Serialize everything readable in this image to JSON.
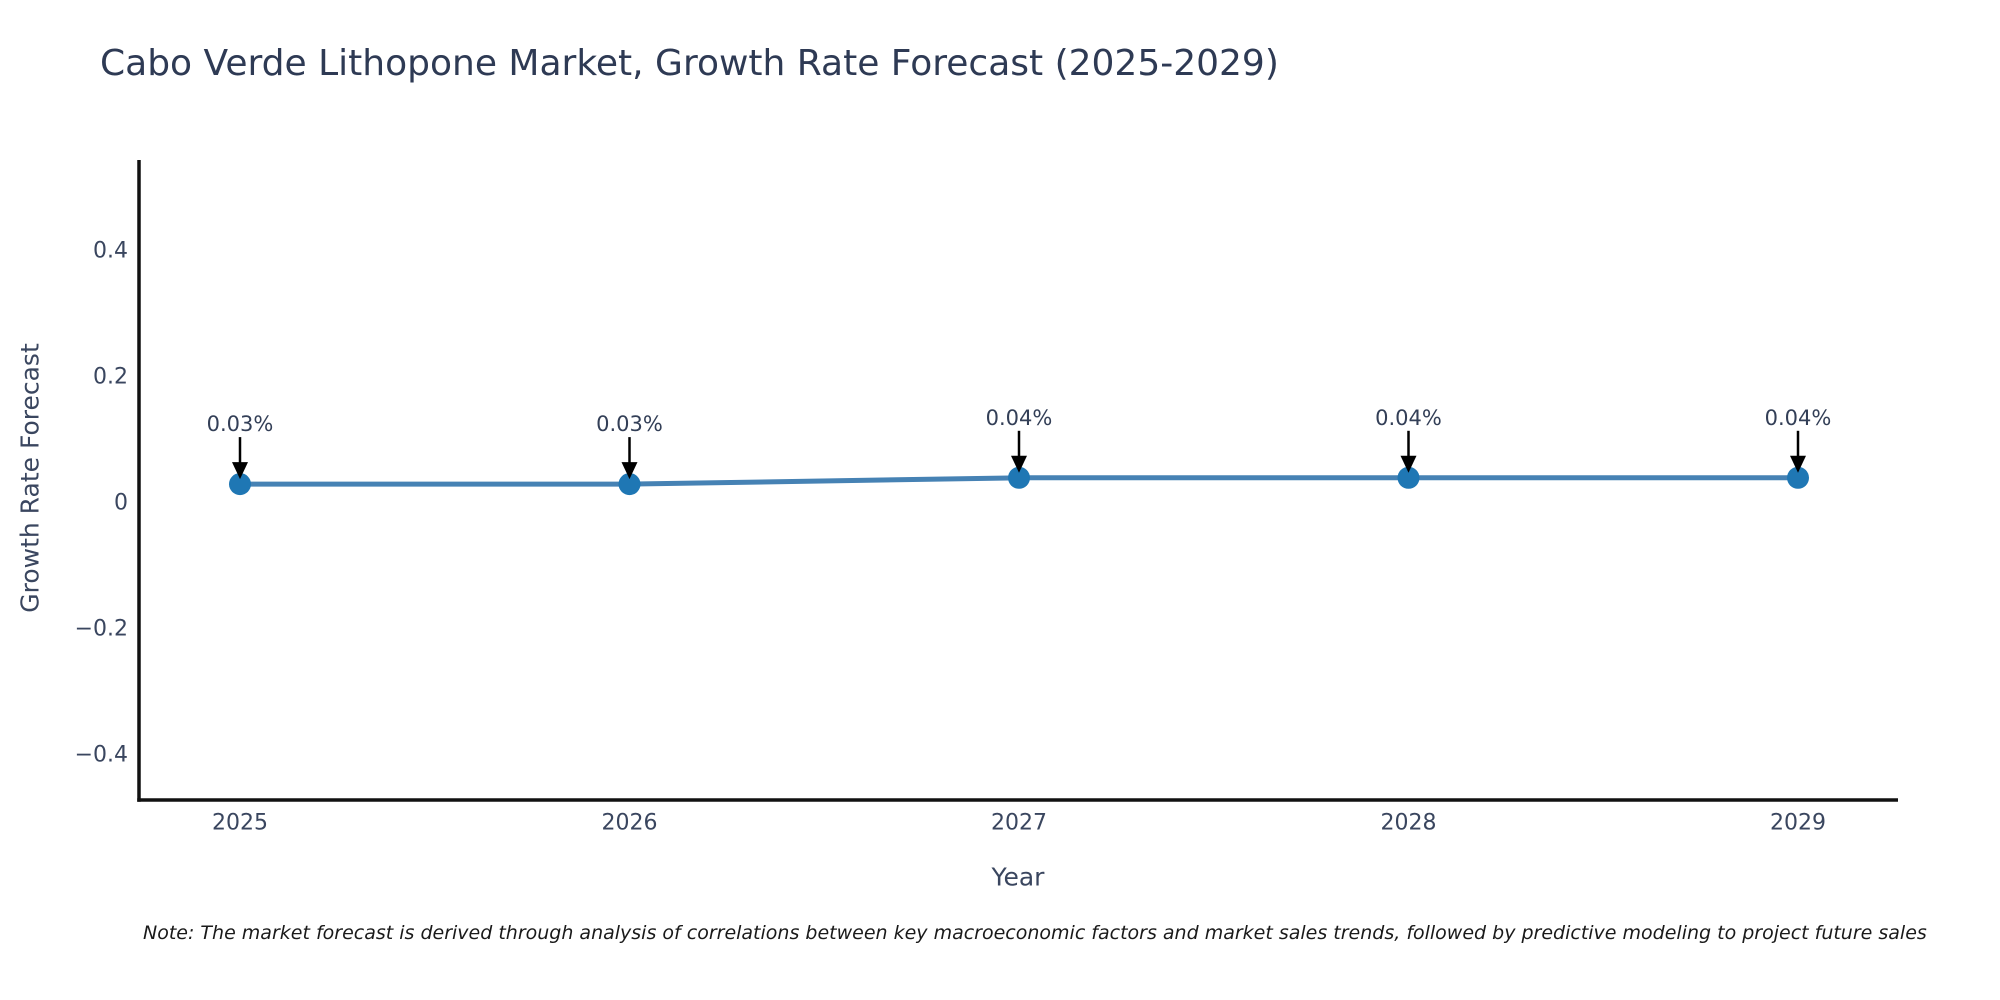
{
  "chart_data": {
    "type": "line",
    "title": "Cabo Verde Lithopone Market, Growth Rate Forecast (2025-2029)",
    "xlabel": "Year",
    "ylabel": "Growth Rate Forecast",
    "categories": [
      2025,
      2026,
      2027,
      2028,
      2029
    ],
    "series": [
      {
        "name": "Growth Rate Forecast",
        "values": [
          0.03,
          0.03,
          0.04,
          0.04,
          0.04
        ]
      }
    ],
    "point_labels": [
      "0.03%",
      "0.03%",
      "0.04%",
      "0.04%",
      "0.04%"
    ],
    "yticks": [
      {
        "value": 0.4,
        "label": "0.4"
      },
      {
        "value": 0.2,
        "label": "0.2"
      },
      {
        "value": 0,
        "label": "0"
      },
      {
        "value": -0.2,
        "label": "−0.2"
      },
      {
        "value": -0.4,
        "label": "−0.4"
      }
    ],
    "ylim": [
      -0.47,
      0.545
    ],
    "xlim": [
      2024.74,
      2029.26
    ],
    "grid": false,
    "legend": null,
    "annotation_style": "down-arrow",
    "colors": {
      "line": "#4682b4",
      "marker": "#1f77b4",
      "arrow": "#000000",
      "axis": "#111111",
      "tick_text": "#3a465f",
      "title_text": "#2e3a54",
      "note_text": "#1a1a1a"
    }
  },
  "note": {
    "text": "Note: The market forecast is derived through analysis of correlations between key macroeconomic factors and market sales trends, followed by predictive modeling to project future sales"
  }
}
